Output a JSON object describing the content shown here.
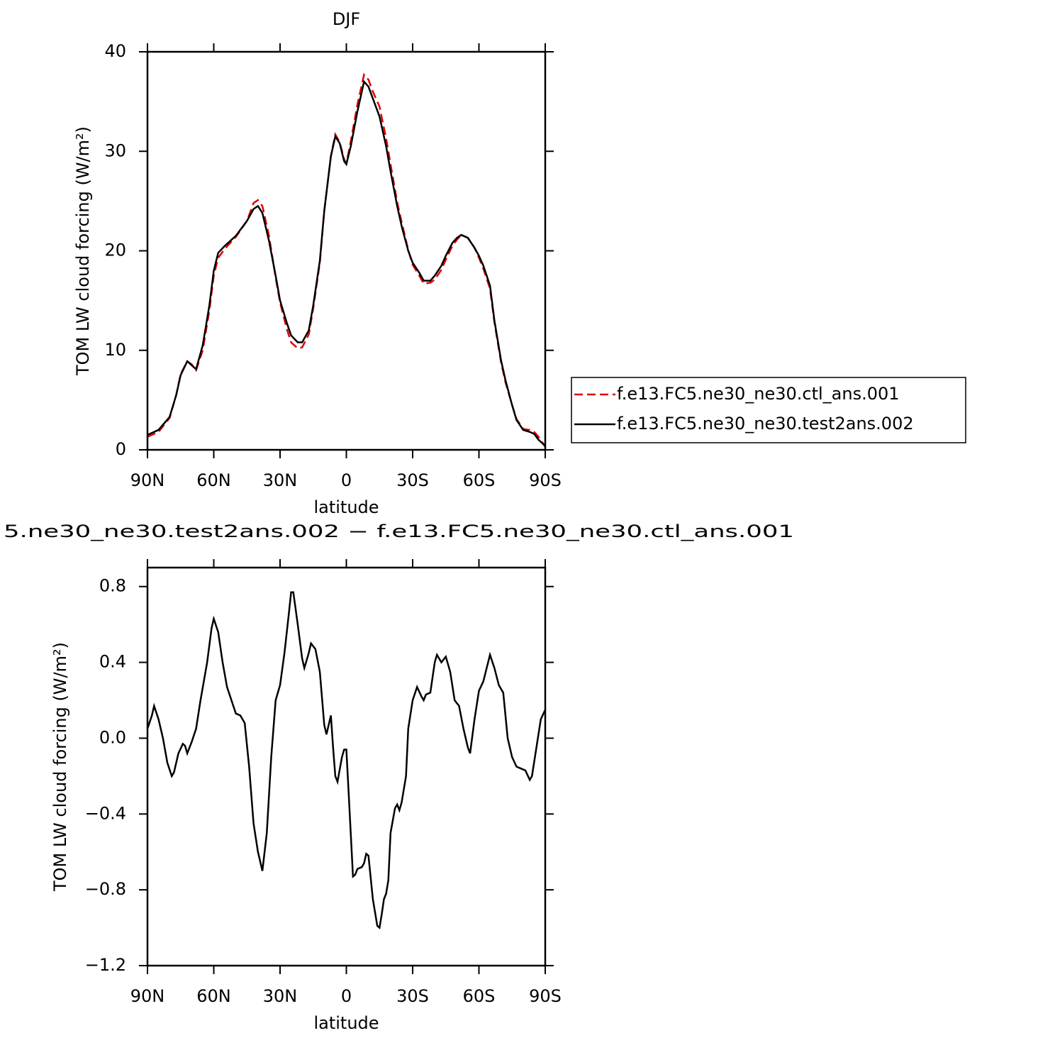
{
  "chart_data": [
    {
      "type": "line",
      "title": "DJF",
      "x_label": "latitude",
      "y_label": "TOM LW cloud forcing (W/m²)",
      "x": [
        90,
        85,
        80,
        77,
        75,
        72,
        70,
        68,
        65,
        62,
        60,
        58,
        55,
        50,
        45,
        42,
        40,
        38,
        35,
        32,
        30,
        27,
        25,
        22,
        20,
        17,
        15,
        12,
        10,
        7,
        5,
        3,
        1,
        0,
        -2,
        -5,
        -8,
        -10,
        -12,
        -15,
        -18,
        -20,
        -23,
        -25,
        -28,
        -30,
        -33,
        -35,
        -38,
        -40,
        -43,
        -45,
        -48,
        -50,
        -52,
        -55,
        -58,
        -60,
        -62,
        -65,
        -67,
        -70,
        -72,
        -75,
        -77,
        -80,
        -83,
        -85,
        -87,
        -90
      ],
      "series": [
        {
          "name": "f.e13.FC5.ne30_ne30.ctl_ans.001",
          "color": "#e00000",
          "line_style": "dashed",
          "values": [
            1.3,
            1.8,
            3.2,
            5.5,
            7.6,
            8.9,
            8.6,
            8.0,
            10.0,
            14,
            17.5,
            19.3,
            20.2,
            21.4,
            23,
            24.8,
            25.1,
            24.5,
            21.5,
            17.3,
            14.8,
            12.2,
            10.8,
            10.2,
            10.3,
            11.6,
            14.2,
            18.8,
            24,
            29.5,
            31.7,
            30.9,
            29.2,
            28.8,
            31,
            34.7,
            37.7,
            37.2,
            36,
            34.5,
            31.3,
            28.7,
            24.9,
            22.9,
            20.1,
            18.6,
            17.5,
            16.7,
            16.8,
            17.1,
            18.1,
            19.1,
            20.5,
            21.1,
            21.6,
            21.3,
            20.3,
            19.3,
            18.2,
            16.2,
            12.8,
            8.8,
            6.8,
            4.5,
            3.1,
            2.1,
            2.0,
            1.8,
            1.3,
            0.3
          ]
        },
        {
          "name": "f.e13.FC5.ne30_ne30.test2ans.002",
          "color": "#000000",
          "line_style": "solid",
          "values": [
            1.5,
            2.0,
            3.3,
            5.5,
            7.5,
            8.9,
            8.5,
            8.1,
            10.5,
            14.5,
            18,
            19.8,
            20.5,
            21.5,
            23,
            24.2,
            24.5,
            23.8,
            21,
            17.5,
            15,
            12.8,
            11.5,
            10.8,
            10.8,
            12,
            14.5,
            19,
            24,
            29.5,
            31.5,
            30.8,
            29,
            28.7,
            30.5,
            34,
            37,
            36.5,
            35.3,
            33.5,
            30.5,
            28,
            24.5,
            22.5,
            20,
            18.8,
            17.8,
            17,
            17,
            17.5,
            18.5,
            19.5,
            20.8,
            21.3,
            21.6,
            21.3,
            20.3,
            19.5,
            18.5,
            16.5,
            13,
            9,
            7,
            4.5,
            3,
            2,
            1.8,
            1.6,
            1.0,
            0.4
          ]
        }
      ],
      "xlim": [
        90,
        -90
      ],
      "xticks": [
        {
          "value": 90,
          "label": "90N"
        },
        {
          "value": 60,
          "label": "60N"
        },
        {
          "value": 30,
          "label": "30N"
        },
        0,
        {
          "value": -30,
          "label": "30S"
        },
        {
          "value": -60,
          "label": "60S"
        },
        {
          "value": -90,
          "label": "90S"
        }
      ],
      "ylim": [
        0,
        40
      ],
      "yticks": [
        0,
        10,
        20,
        30,
        40
      ],
      "legend": "right"
    },
    {
      "type": "line",
      "title": "5.ne30_ne30.test2ans.002 − f.e13.FC5.ne30_ne30.ctl_ans.001",
      "x_label": "latitude",
      "y_label": "TOM LW cloud forcing (W/m²)",
      "x": [
        90,
        88,
        87,
        85,
        83,
        81,
        79,
        78,
        76,
        74,
        73,
        72,
        70,
        68,
        66,
        63,
        61,
        60,
        58,
        56,
        54,
        52,
        50,
        48,
        46,
        44,
        42,
        40,
        38,
        36,
        34,
        32,
        30,
        28,
        26,
        25,
        24,
        22,
        20,
        19,
        17,
        16,
        14,
        12,
        10,
        9,
        7,
        6,
        5,
        4,
        2,
        1,
        0,
        -1,
        -3,
        -4,
        -5,
        -7,
        -8,
        -9,
        -10,
        -12,
        -14,
        -15,
        -16,
        -17,
        -18,
        -19,
        -20,
        -22,
        -23,
        -24,
        -25,
        -27,
        -28,
        -30,
        -32,
        -34,
        -35,
        -36,
        -38,
        -40,
        -41,
        -43,
        -45,
        -47,
        -49,
        -51,
        -53,
        -55,
        -56,
        -58,
        -60,
        -62,
        -65,
        -67,
        -69,
        -71,
        -73,
        -75,
        -77,
        -79,
        -81,
        -83,
        -84,
        -86,
        -88,
        -90
      ],
      "series": [
        {
          "color": "#000000",
          "line_style": "solid",
          "values": [
            0.05,
            0.12,
            0.17,
            0.1,
            0.0,
            -0.13,
            -0.2,
            -0.18,
            -0.08,
            -0.03,
            -0.04,
            -0.08,
            -0.02,
            0.05,
            0.2,
            0.4,
            0.58,
            0.63,
            0.56,
            0.4,
            0.27,
            0.2,
            0.13,
            0.12,
            0.08,
            -0.15,
            -0.45,
            -0.6,
            -0.7,
            -0.5,
            -0.1,
            0.2,
            0.28,
            0.45,
            0.66,
            0.77,
            0.77,
            0.6,
            0.42,
            0.37,
            0.45,
            0.5,
            0.47,
            0.35,
            0.07,
            0.02,
            0.12,
            -0.05,
            -0.2,
            -0.23,
            -0.1,
            -0.06,
            -0.06,
            -0.28,
            -0.73,
            -0.72,
            -0.69,
            -0.68,
            -0.66,
            -0.61,
            -0.62,
            -0.85,
            -0.99,
            -1.0,
            -0.93,
            -0.85,
            -0.82,
            -0.75,
            -0.5,
            -0.37,
            -0.35,
            -0.38,
            -0.34,
            -0.2,
            0.05,
            0.2,
            0.27,
            0.22,
            0.2,
            0.23,
            0.24,
            0.4,
            0.44,
            0.4,
            0.43,
            0.35,
            0.2,
            0.17,
            0.05,
            -0.05,
            -0.08,
            0.1,
            0.25,
            0.3,
            0.44,
            0.37,
            0.28,
            0.24,
            0.0,
            -0.1,
            -0.15,
            -0.16,
            -0.17,
            -0.22,
            -0.2,
            -0.05,
            0.1,
            0.15
          ]
        }
      ],
      "xlim": [
        90,
        -90
      ],
      "xticks": [
        {
          "value": 90,
          "label": "90N"
        },
        {
          "value": 60,
          "label": "60N"
        },
        {
          "value": 30,
          "label": "30N"
        },
        0,
        {
          "value": -30,
          "label": "30S"
        },
        {
          "value": -60,
          "label": "60S"
        },
        {
          "value": -90,
          "label": "90S"
        }
      ],
      "ylim": [
        -1.2,
        0.9
      ],
      "yticks": [
        {
          "value": -1.2,
          "label": "−1.2"
        },
        {
          "value": -0.8,
          "label": "−0.8"
        },
        {
          "value": -0.4,
          "label": "−0.4"
        },
        {
          "value": 0,
          "label": "0.0"
        },
        0.4,
        0.8
      ]
    }
  ]
}
